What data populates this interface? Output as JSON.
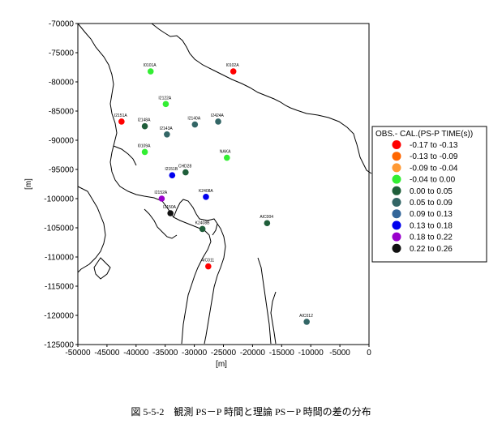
{
  "figure": {
    "caption": "図 5-5-2　観測 PS－P 時間と理論 PS－P 時間の差の分布",
    "xlabel": "[m]",
    "ylabel": "[m]"
  },
  "chart_data": {
    "type": "scatter",
    "xlim": [
      -50000,
      0
    ],
    "ylim": [
      -125000,
      -70000
    ],
    "x_ticks": [
      -50000,
      -45000,
      -40000,
      -35000,
      -30000,
      -25000,
      -20000,
      -15000,
      -10000,
      -5000,
      0
    ],
    "y_ticks": [
      -70000,
      -75000,
      -80000,
      -85000,
      -90000,
      -95000,
      -100000,
      -105000,
      -110000,
      -115000,
      -120000,
      -125000
    ],
    "legend": {
      "title": "OBS.- CAL.(PS-P TIME(s))",
      "entries": [
        {
          "label": "-0.17  to  -0.13",
          "color": "#ff0000"
        },
        {
          "label": "-0.13  to  -0.09",
          "color": "#ff6600"
        },
        {
          "label": "-0.09  to  -0.04",
          "color": "#ff9933"
        },
        {
          "label": "-0.04  to  0.00",
          "color": "#33ee33"
        },
        {
          "label": "0.00  to  0.05",
          "color": "#1f5e3a"
        },
        {
          "label": "0.05  to  0.09",
          "color": "#336666"
        },
        {
          "label": "0.09  to  0.13",
          "color": "#336699"
        },
        {
          "label": "0.13  to  0.18",
          "color": "#0000ee"
        },
        {
          "label": "0.18  to  0.22",
          "color": "#9900cc"
        },
        {
          "label": "0.22  to  0.26",
          "color": "#111111"
        }
      ]
    },
    "stations": [
      {
        "name": "I0101A",
        "x": -37500,
        "y": -78200,
        "color": "#33ee33"
      },
      {
        "name": "I0102A",
        "x": -23300,
        "y": -78200,
        "color": "#ff0000"
      },
      {
        "name": "I2122A",
        "x": -34900,
        "y": -83800,
        "color": "#33ee33"
      },
      {
        "name": "I2151A",
        "x": -42500,
        "y": -86800,
        "color": "#ff0000"
      },
      {
        "name": "I2148A",
        "x": -38500,
        "y": -87600,
        "color": "#1f5e3a"
      },
      {
        "name": "I2143A",
        "x": -34700,
        "y": -89000,
        "color": "#336666"
      },
      {
        "name": "I2140A",
        "x": -29900,
        "y": -87300,
        "color": "#336666"
      },
      {
        "name": "I2424A",
        "x": -25900,
        "y": -86800,
        "color": "#336666"
      },
      {
        "name": "I0109A",
        "x": -38500,
        "y": -92000,
        "color": "#33ee33"
      },
      {
        "name": "NAKA",
        "x": -24400,
        "y": -93000,
        "color": "#33ee33"
      },
      {
        "name": "I2151B",
        "x": -33800,
        "y": -96000,
        "color": "#0000ee"
      },
      {
        "name": "CHD28",
        "x": -31500,
        "y": -95500,
        "color": "#1f5e3a"
      },
      {
        "name": "I2152A",
        "x": -35600,
        "y": -100000,
        "color": "#9900cc"
      },
      {
        "name": "K2408A",
        "x": -28000,
        "y": -99700,
        "color": "#0000ee"
      },
      {
        "name": "I2150A",
        "x": -34100,
        "y": -102500,
        "color": "#111111"
      },
      {
        "name": "K2408B",
        "x": -28600,
        "y": -105200,
        "color": "#1f5e3a"
      },
      {
        "name": "AIC004",
        "x": -17500,
        "y": -104200,
        "color": "#1f5e3a"
      },
      {
        "name": "AIC011",
        "x": -27600,
        "y": -111600,
        "color": "#ff0000"
      },
      {
        "name": "AIC012",
        "x": -10700,
        "y": -121100,
        "color": "#336666"
      }
    ]
  }
}
